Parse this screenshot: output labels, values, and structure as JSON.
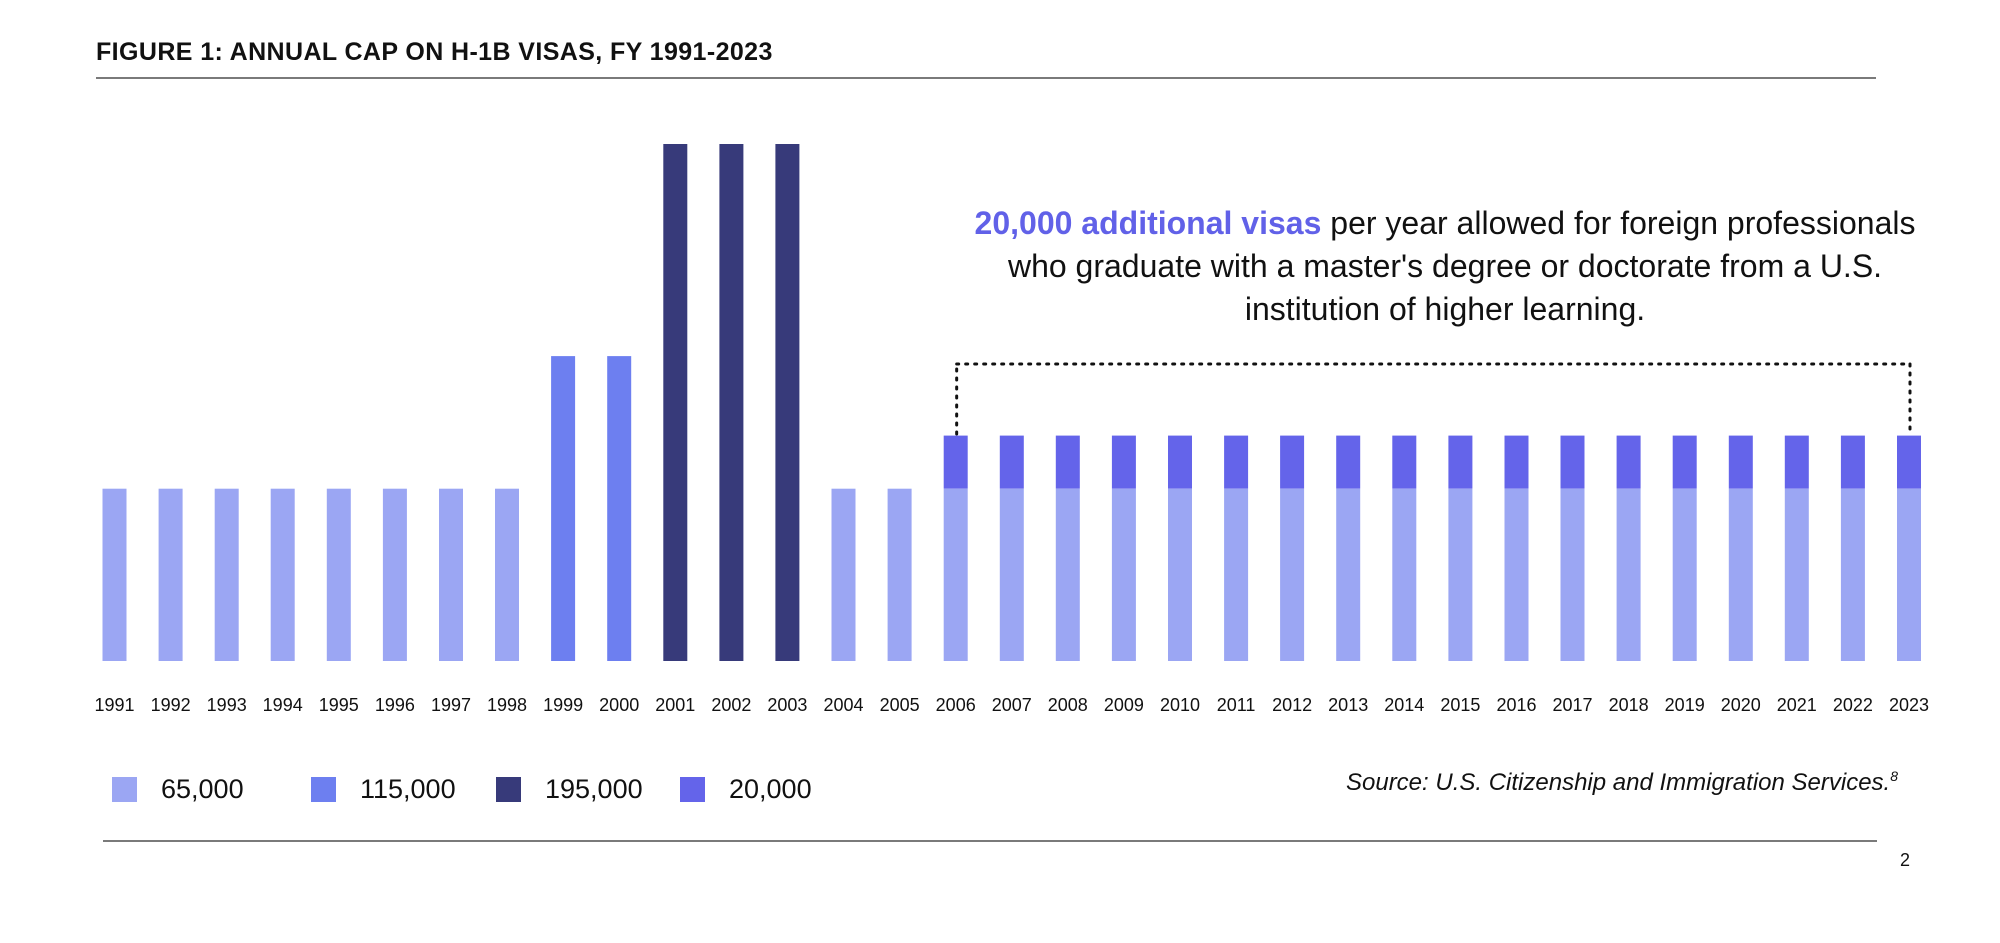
{
  "figure_title": "FIGURE 1: ANNUAL CAP ON H-1B VISAS, FY 1991-2023",
  "annotation": {
    "highlight": "20,000 additional visas",
    "text": " per year allowed for foreign professionals who graduate with a master's degree or doctorate from a U.S. institution of higher learning."
  },
  "source": {
    "text": "Source: U.S. Citizenship and Immigration Services.",
    "footnote": "8"
  },
  "page_number": "2",
  "chart_data": {
    "type": "bar",
    "stacked": true,
    "title": "FIGURE 1: ANNUAL CAP ON H-1B VISAS, FY 1991-2023",
    "xlabel": "",
    "ylabel": "",
    "ylim": [
      0,
      195000
    ],
    "categories": [
      "1991",
      "1992",
      "1993",
      "1994",
      "1995",
      "1996",
      "1997",
      "1998",
      "1999",
      "2000",
      "2001",
      "2002",
      "2003",
      "2004",
      "2005",
      "2006",
      "2007",
      "2008",
      "2009",
      "2010",
      "2011",
      "2012",
      "2013",
      "2014",
      "2015",
      "2016",
      "2017",
      "2018",
      "2019",
      "2020",
      "2021",
      "2022",
      "2023"
    ],
    "series": [
      {
        "name": "65,000",
        "color": "#9ba6f3",
        "values": [
          65000,
          65000,
          65000,
          65000,
          65000,
          65000,
          65000,
          65000,
          0,
          0,
          0,
          0,
          0,
          65000,
          65000,
          65000,
          65000,
          65000,
          65000,
          65000,
          65000,
          65000,
          65000,
          65000,
          65000,
          65000,
          65000,
          65000,
          65000,
          65000,
          65000,
          65000,
          65000
        ]
      },
      {
        "name": "115,000",
        "color": "#6d7ff0",
        "values": [
          0,
          0,
          0,
          0,
          0,
          0,
          0,
          0,
          115000,
          115000,
          0,
          0,
          0,
          0,
          0,
          0,
          0,
          0,
          0,
          0,
          0,
          0,
          0,
          0,
          0,
          0,
          0,
          0,
          0,
          0,
          0,
          0,
          0
        ]
      },
      {
        "name": "195,000",
        "color": "#373a7a",
        "values": [
          0,
          0,
          0,
          0,
          0,
          0,
          0,
          0,
          0,
          0,
          195000,
          195000,
          195000,
          0,
          0,
          0,
          0,
          0,
          0,
          0,
          0,
          0,
          0,
          0,
          0,
          0,
          0,
          0,
          0,
          0,
          0,
          0,
          0
        ]
      },
      {
        "name": "20,000",
        "color": "#6464ea",
        "values": [
          0,
          0,
          0,
          0,
          0,
          0,
          0,
          0,
          0,
          0,
          0,
          0,
          0,
          0,
          0,
          20000,
          20000,
          20000,
          20000,
          20000,
          20000,
          20000,
          20000,
          20000,
          20000,
          20000,
          20000,
          20000,
          20000,
          20000,
          20000,
          20000,
          20000
        ]
      }
    ],
    "grid": false,
    "legend_position": "bottom-left",
    "bracket": {
      "from": "2006",
      "to": "2023"
    }
  }
}
